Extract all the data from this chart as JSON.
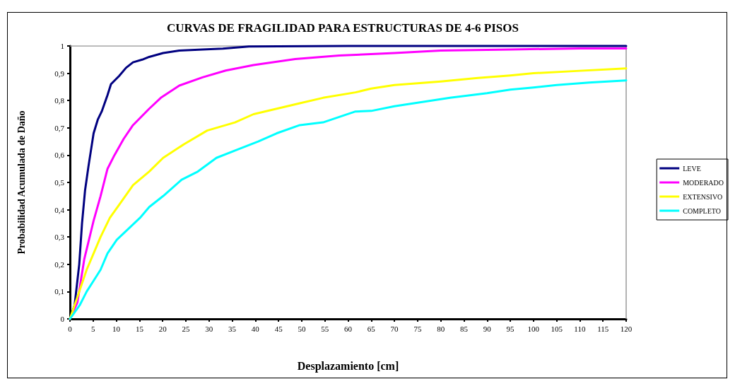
{
  "chart_data": {
    "type": "line",
    "title": "CURVAS DE FRAGILIDAD PARA ESTRUCTURAS DE 4-6 PISOS",
    "xlabel": "Desplazamiento [cm]",
    "ylabel": "Probabilidad Acumulada de Daño",
    "xlim": [
      0,
      120
    ],
    "xticks": [
      0,
      5,
      10,
      15,
      20,
      25,
      30,
      35,
      40,
      45,
      50,
      55,
      60,
      65,
      70,
      75,
      80,
      85,
      90,
      95,
      100,
      105,
      110,
      115,
      120
    ],
    "ylim": [
      0,
      1
    ],
    "yticks": [
      0,
      {
        "value": 0.1,
        "label": "0,1"
      },
      {
        "value": 0.2,
        "label": "0,2"
      },
      {
        "value": 0.3,
        "label": "0,3"
      },
      {
        "value": 0.4,
        "label": "0,4"
      },
      {
        "value": 0.5,
        "label": "0,5"
      },
      {
        "value": 0.6,
        "label": "0,6"
      },
      {
        "value": 0.7,
        "label": "0,7"
      },
      {
        "value": 0.8,
        "label": "0,8"
      },
      {
        "value": 0.9,
        "label": "0,9"
      },
      1
    ],
    "grid": false,
    "legend": "right",
    "marker": "none",
    "line_style": "solid",
    "series": [
      {
        "name": "LEVE",
        "color": "#000080",
        "x": [
          0,
          1,
          2,
          2.6,
          3.25,
          4,
          5.1,
          6,
          6.85,
          8.1,
          8.85,
          10.6,
          12.1,
          13.6,
          15.6,
          17.1,
          20.1,
          23.6,
          28.6,
          33,
          38.6,
          45,
          60,
          120
        ],
        "values": [
          0,
          0.05,
          0.2,
          0.35,
          0.47,
          0.56,
          0.68,
          0.73,
          0.76,
          0.82,
          0.86,
          0.89,
          0.92,
          0.94,
          0.95,
          0.96,
          0.974,
          0.983,
          0.987,
          0.99,
          0.998,
          0.999,
          1,
          1
        ]
      },
      {
        "name": "MODERADO",
        "color": "#ff00ff",
        "x": [
          0,
          1.6,
          3.1,
          5.1,
          6.6,
          8.1,
          9.6,
          11.6,
          13.6,
          17.1,
          19.6,
          23.6,
          28.6,
          33.6,
          39.6,
          48.6,
          58.1,
          70,
          80,
          95,
          110,
          120
        ],
        "values": [
          0,
          0.06,
          0.22,
          0.36,
          0.45,
          0.55,
          0.6,
          0.66,
          0.71,
          0.77,
          0.81,
          0.855,
          0.885,
          0.91,
          0.93,
          0.952,
          0.965,
          0.974,
          0.983,
          0.987,
          0.991,
          0.991
        ]
      },
      {
        "name": "EXTENSIVO",
        "color": "#ffff00",
        "x": [
          0,
          1.6,
          3.6,
          5.1,
          6.6,
          8.6,
          11.1,
          13.6,
          17.1,
          20.1,
          24.6,
          29.6,
          35.6,
          39.6,
          44.6,
          49.6,
          54.6,
          61.6,
          65,
          70,
          80,
          88,
          95,
          100,
          110,
          120
        ],
        "values": [
          0,
          0.08,
          0.18,
          0.24,
          0.3,
          0.37,
          0.43,
          0.49,
          0.54,
          0.59,
          0.64,
          0.69,
          0.72,
          0.75,
          0.77,
          0.79,
          0.81,
          0.83,
          0.844,
          0.857,
          0.87,
          0.883,
          0.892,
          0.9,
          0.909,
          0.918
        ]
      },
      {
        "name": "COMPLETO",
        "color": "#00ffff",
        "x": [
          0,
          2.1,
          3.6,
          5.1,
          6.6,
          8.1,
          10.1,
          12.6,
          15.1,
          17.1,
          20.1,
          24.1,
          27.6,
          31.6,
          36.1,
          40.6,
          44.6,
          49.6,
          54.6,
          61.6,
          65,
          70,
          75,
          82,
          90,
          95,
          100,
          105,
          112,
          120
        ],
        "values": [
          0,
          0.05,
          0.1,
          0.14,
          0.18,
          0.24,
          0.29,
          0.33,
          0.37,
          0.41,
          0.45,
          0.51,
          0.54,
          0.59,
          0.62,
          0.65,
          0.68,
          0.71,
          0.72,
          0.76,
          0.762,
          0.779,
          0.792,
          0.81,
          0.827,
          0.84,
          0.848,
          0.857,
          0.866,
          0.874
        ]
      }
    ]
  }
}
